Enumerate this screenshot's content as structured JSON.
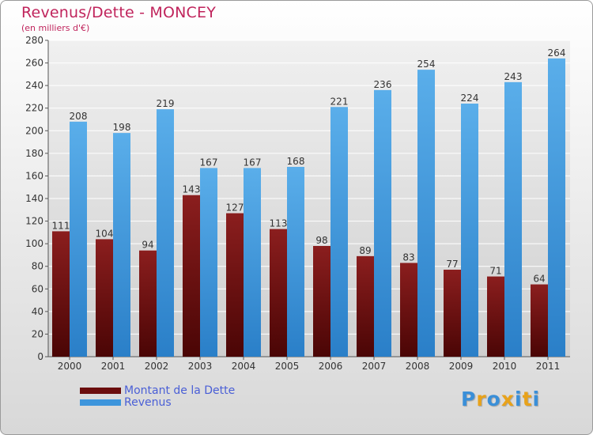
{
  "header": {
    "title": "Revenus/Dette - MONCEY",
    "subtitle": "(en milliers d'€)"
  },
  "brand": {
    "text": "Proxiti",
    "letter_colors": [
      "#3a8fd8",
      "#e8a21a",
      "#3a8fd8",
      "#e8a21a",
      "#3a8fd8",
      "#e8a21a",
      "#3a8fd8"
    ]
  },
  "colors": {
    "dette": "#6b0d0d",
    "revenus": "#3d95dc",
    "title": "#c0245c",
    "legend_text": "#4a5fd6"
  },
  "chart_data": {
    "type": "bar",
    "title": "Revenus/Dette - MONCEY",
    "subtitle": "(en milliers d'€)",
    "categories": [
      "2000",
      "2001",
      "2002",
      "2003",
      "2004",
      "2005",
      "2006",
      "2007",
      "2008",
      "2009",
      "2010",
      "2011"
    ],
    "series": [
      {
        "name": "Montant de la Dette",
        "values": [
          111,
          104,
          94,
          143,
          127,
          113,
          98,
          89,
          83,
          77,
          71,
          64
        ]
      },
      {
        "name": "Revenus",
        "values": [
          208,
          198,
          219,
          167,
          167,
          168,
          221,
          236,
          254,
          224,
          243,
          264
        ]
      }
    ],
    "ylim": [
      0,
      280
    ],
    "yticks": [
      0,
      20,
      40,
      60,
      80,
      100,
      120,
      140,
      160,
      180,
      200,
      220,
      240,
      260,
      280
    ],
    "grid": true,
    "legend": "bottom-left"
  }
}
